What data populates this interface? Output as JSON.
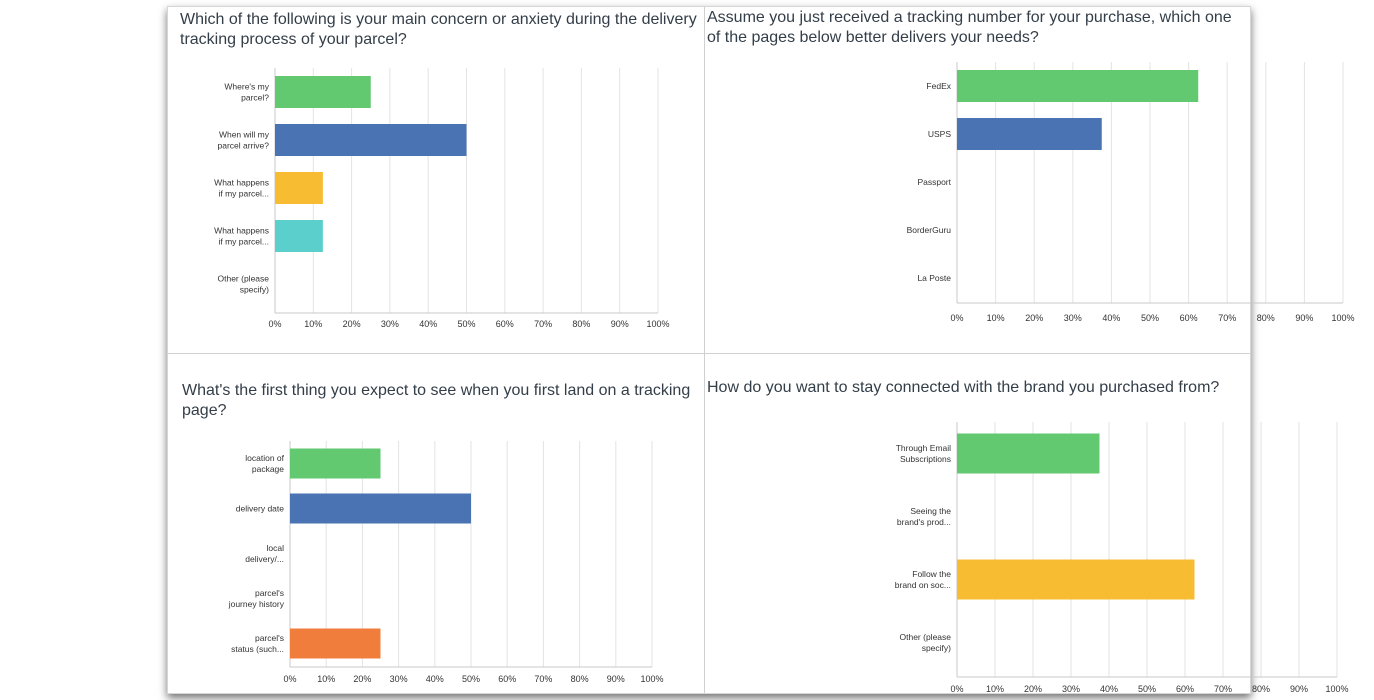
{
  "colors": {
    "green": "#62c971",
    "blue": "#4a73b4",
    "yellow": "#f7bc32",
    "teal": "#5bcfcc",
    "orange": "#f07d3c",
    "gridline": "#e3e3e3",
    "axis": "#c8c8c8"
  },
  "chart_data": [
    {
      "type": "bar",
      "orientation": "horizontal",
      "title": "Which of the following is your main concern or anxiety during the delivery tracking process of your parcel?",
      "categories": [
        [
          "Where's my",
          "parcel?"
        ],
        [
          "When will my",
          "parcel arrive?"
        ],
        [
          "What happens",
          "if my parcel..."
        ],
        [
          "What happens",
          "if my parcel..."
        ],
        [
          "Other (please",
          "specify)"
        ]
      ],
      "values": [
        25,
        50,
        12.5,
        12.5,
        0
      ],
      "bar_colors": [
        "green",
        "blue",
        "yellow",
        "teal",
        "green"
      ],
      "xlim": [
        0,
        100
      ],
      "xticks": [
        "0%",
        "10%",
        "20%",
        "30%",
        "40%",
        "50%",
        "60%",
        "70%",
        "80%",
        "90%",
        "100%"
      ],
      "grid": true
    },
    {
      "type": "bar",
      "orientation": "horizontal",
      "title": "Assume you just received a tracking number for your purchase, which one of the pages below better delivers your needs?",
      "categories": [
        [
          "FedEx"
        ],
        [
          "USPS"
        ],
        [
          "Passport"
        ],
        [
          "BorderGuru"
        ],
        [
          "La Poste"
        ]
      ],
      "values": [
        62.5,
        37.5,
        0,
        0,
        0
      ],
      "bar_colors": [
        "green",
        "blue",
        "yellow",
        "teal",
        "orange"
      ],
      "xlim": [
        0,
        100
      ],
      "xticks": [
        "0%",
        "10%",
        "20%",
        "30%",
        "40%",
        "50%",
        "60%",
        "70%",
        "80%",
        "90%",
        "100%"
      ],
      "grid": true
    },
    {
      "type": "bar",
      "orientation": "horizontal",
      "title": "What's the first thing you expect to see when you first land on a tracking page?",
      "categories": [
        [
          "location of",
          "package"
        ],
        [
          "delivery date"
        ],
        [
          "local",
          "delivery/..."
        ],
        [
          "parcel's",
          "journey history"
        ],
        [
          "parcel's",
          "status (such..."
        ]
      ],
      "values": [
        25,
        50,
        0,
        0,
        25
      ],
      "bar_colors": [
        "green",
        "blue",
        "yellow",
        "teal",
        "orange"
      ],
      "xlim": [
        0,
        100
      ],
      "xticks": [
        "0%",
        "10%",
        "20%",
        "30%",
        "40%",
        "50%",
        "60%",
        "70%",
        "80%",
        "90%",
        "100%"
      ],
      "grid": true
    },
    {
      "type": "bar",
      "orientation": "horizontal",
      "title": "How do you want to stay connected with the brand you purchased from?",
      "categories": [
        [
          "Through Email",
          "Subscriptions"
        ],
        [
          "Seeing the",
          "brand's prod..."
        ],
        [
          "Follow the",
          "brand on soc..."
        ],
        [
          "Other (please",
          "specify)"
        ]
      ],
      "values": [
        37.5,
        0,
        62.5,
        0
      ],
      "bar_colors": [
        "green",
        "blue",
        "yellow",
        "teal"
      ],
      "xlim": [
        0,
        100
      ],
      "xticks": [
        "0%",
        "10%",
        "20%",
        "30%",
        "40%",
        "50%",
        "60%",
        "70%",
        "80%",
        "90%",
        "100%"
      ],
      "grid": true
    }
  ]
}
